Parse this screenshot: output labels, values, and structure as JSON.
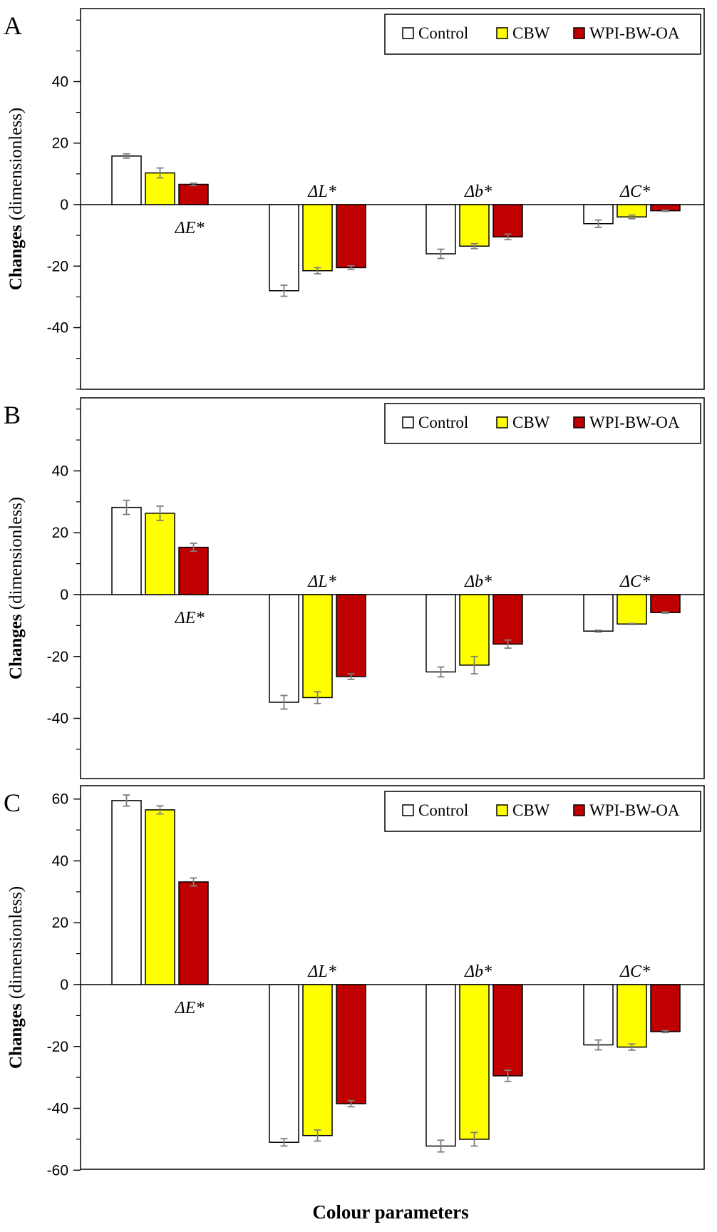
{
  "chart_data": [
    {
      "type": "bar",
      "panel": "A",
      "categories": [
        "ΔE*",
        "ΔL*",
        "Δb*",
        "ΔC*"
      ],
      "ylabel_bold": "Changes",
      "ylabel_rest": "(dimensionless)",
      "ylim": [
        -60,
        60
      ],
      "yticks": [
        40,
        20,
        0,
        -20,
        -40
      ],
      "legend": [
        "Control",
        "CBW",
        "WPI-BW-OA"
      ],
      "series": [
        {
          "name": "Control",
          "color": "#ffffff",
          "values": [
            15.8,
            -28.0,
            -16.0,
            -6.2
          ],
          "errors": [
            0.7,
            1.8,
            1.5,
            1.2
          ]
        },
        {
          "name": "CBW",
          "color": "#ffff00",
          "values": [
            10.3,
            -21.5,
            -13.5,
            -4.0
          ],
          "errors": [
            1.6,
            1.0,
            0.8,
            0.6
          ]
        },
        {
          "name": "WPI-BW-OA",
          "color": "#c00000",
          "values": [
            6.6,
            -20.5,
            -10.5,
            -2.0
          ],
          "errors": [
            0.4,
            0.6,
            0.9,
            0.2
          ]
        }
      ]
    },
    {
      "type": "bar",
      "panel": "B",
      "categories": [
        "ΔE*",
        "ΔL*",
        "Δb*",
        "ΔC*"
      ],
      "ylabel_bold": "Changes",
      "ylabel_rest": "(dimensionless)",
      "ylim": [
        -60,
        60
      ],
      "yticks": [
        40,
        20,
        0,
        -20,
        -40
      ],
      "legend": [
        "Control",
        "CBW",
        "WPI-BW-OA"
      ],
      "series": [
        {
          "name": "Control",
          "color": "#ffffff",
          "values": [
            28.2,
            -34.8,
            -25.0,
            -11.8
          ],
          "errors": [
            2.3,
            2.2,
            1.6,
            0.3
          ]
        },
        {
          "name": "CBW",
          "color": "#ffff00",
          "values": [
            26.3,
            -33.3,
            -22.8,
            -9.5
          ],
          "errors": [
            2.3,
            1.9,
            2.8,
            0.2
          ]
        },
        {
          "name": "WPI-BW-OA",
          "color": "#c00000",
          "values": [
            15.3,
            -26.5,
            -16.0,
            -5.8
          ],
          "errors": [
            1.3,
            0.9,
            1.3,
            0.2
          ]
        }
      ]
    },
    {
      "type": "bar",
      "panel": "C",
      "categories": [
        "ΔE*",
        "ΔL*",
        "Δb*",
        "ΔC*"
      ],
      "ylabel_bold": "Changes",
      "ylabel_rest": "(dimensionless)",
      "ylim": [
        -60,
        60
      ],
      "yticks": [
        60,
        40,
        20,
        0,
        -20,
        -40,
        -60
      ],
      "legend": [
        "Control",
        "CBW",
        "WPI-BW-OA"
      ],
      "series": [
        {
          "name": "Control",
          "color": "#ffffff",
          "values": [
            59.5,
            -51.0,
            -52.2,
            -19.5
          ],
          "errors": [
            1.8,
            1.2,
            1.9,
            1.6
          ]
        },
        {
          "name": "CBW",
          "color": "#ffff00",
          "values": [
            56.5,
            -48.8,
            -50.0,
            -20.2
          ],
          "errors": [
            1.3,
            1.8,
            2.2,
            1.0
          ]
        },
        {
          "name": "WPI-BW-OA",
          "color": "#c00000",
          "values": [
            33.2,
            -38.5,
            -29.5,
            -15.2
          ],
          "errors": [
            1.3,
            1.0,
            1.8,
            0.3
          ]
        }
      ]
    }
  ],
  "xlabel": "Colour parameters"
}
